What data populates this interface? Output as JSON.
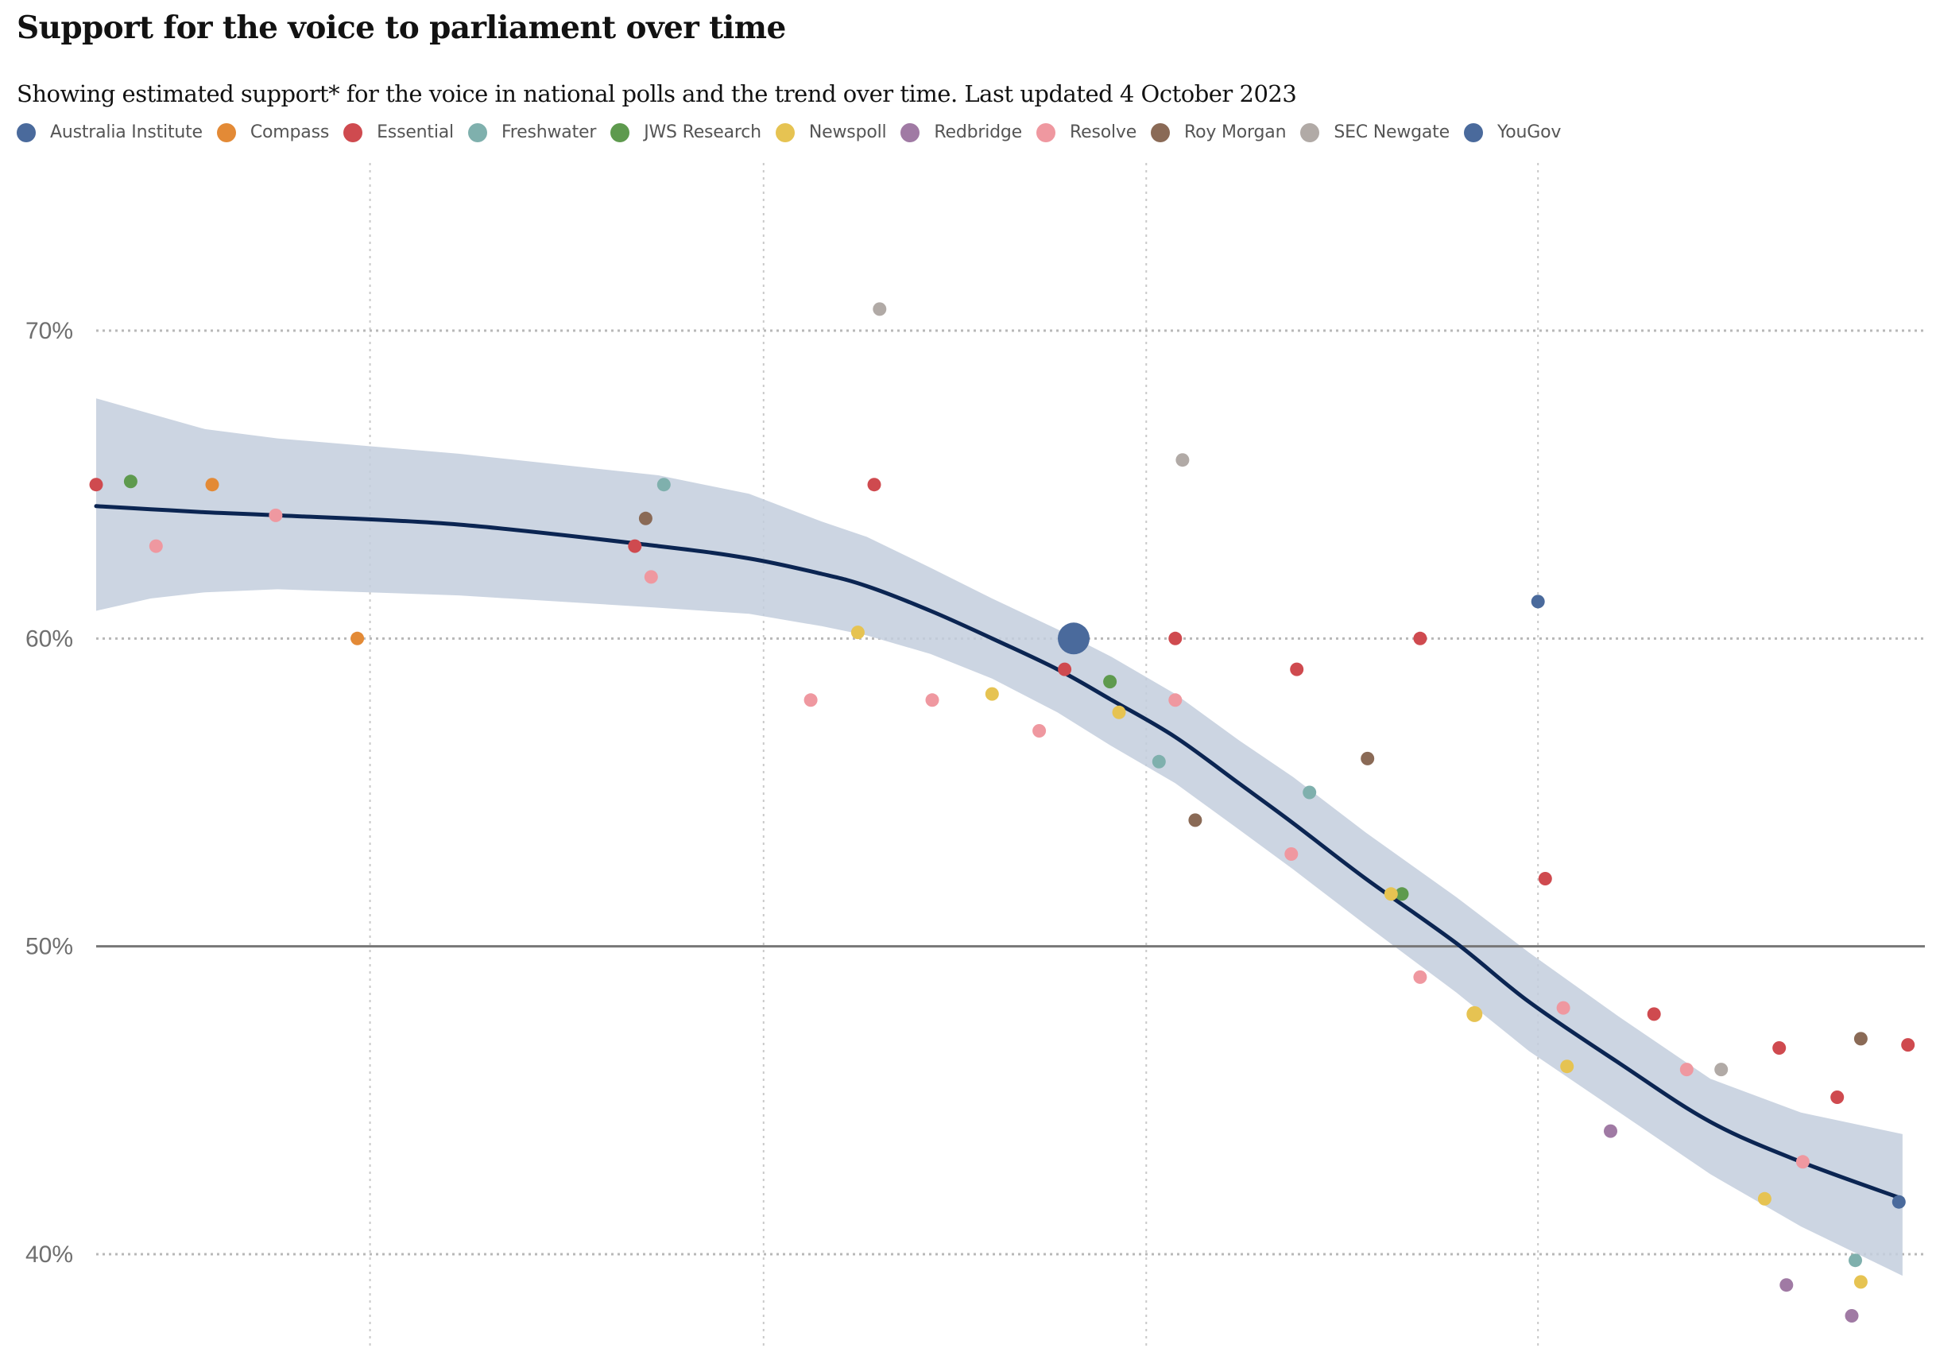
{
  "title": "Support for the voice to parliament over time",
  "subtitle": "Showing estimated support* for the voice in national polls and the trend over time. Last updated 4 October 2023",
  "legend": [
    {
      "name": "Australia Institute",
      "color": "#4a6a9c"
    },
    {
      "name": "Compass",
      "color": "#e38a36"
    },
    {
      "name": "Essential",
      "color": "#cf4a4f"
    },
    {
      "name": "Freshwater",
      "color": "#7fb0ad"
    },
    {
      "name": "JWS Research",
      "color": "#5e9a4e"
    },
    {
      "name": "Newspoll",
      "color": "#e6c352"
    },
    {
      "name": "Redbridge",
      "color": "#a07aa4"
    },
    {
      "name": "Resolve",
      "color": "#ef98a0"
    },
    {
      "name": "Roy Morgan",
      "color": "#8a6a56"
    },
    {
      "name": "SEC Newgate",
      "color": "#b1aaa6"
    },
    {
      "name": "YouGov",
      "color": "#4a6a9c"
    }
  ],
  "chart_data": {
    "type": "scatter",
    "ylim": [
      37,
      74
    ],
    "xlim": [
      0,
      100
    ],
    "yticks": [
      {
        "value": 70,
        "label": "70%"
      },
      {
        "value": 60,
        "label": "60%"
      },
      {
        "value": 50,
        "label": "50%"
      },
      {
        "value": 40,
        "label": "40%"
      }
    ],
    "xgrid": [
      15.1,
      36.8,
      57.9,
      79.5
    ],
    "reference_line": 50,
    "grid": true,
    "trend": {
      "x": [
        0,
        3,
        6,
        10,
        20,
        31,
        36,
        40,
        42.5,
        46,
        49.4,
        53,
        56,
        59.5,
        63,
        66,
        70,
        75,
        79,
        84,
        89,
        94,
        99.6
      ],
      "y": [
        64.3,
        64.2,
        64.1,
        64.0,
        63.7,
        63.0,
        62.6,
        62.1,
        61.7,
        60.9,
        60.0,
        59.0,
        58.0,
        56.8,
        55.3,
        54.0,
        52.2,
        50.1,
        48.2,
        46.2,
        44.3,
        43.0,
        41.8
      ]
    },
    "band": {
      "x": [
        0,
        3,
        6,
        10,
        20,
        31,
        36,
        40,
        42.5,
        46,
        49.4,
        53,
        56,
        59.5,
        63,
        66,
        70,
        75,
        79,
        84,
        89,
        94,
        99.6
      ],
      "upper": [
        67.8,
        67.3,
        66.8,
        66.5,
        66.0,
        65.3,
        64.7,
        63.8,
        63.3,
        62.3,
        61.3,
        60.3,
        59.4,
        58.2,
        56.7,
        55.5,
        53.7,
        51.6,
        49.8,
        47.7,
        45.7,
        44.6,
        43.9
      ],
      "lower": [
        60.9,
        61.3,
        61.5,
        61.6,
        61.4,
        61.0,
        60.8,
        60.4,
        60.1,
        59.5,
        58.7,
        57.6,
        56.5,
        55.3,
        53.8,
        52.5,
        50.7,
        48.5,
        46.6,
        44.6,
        42.6,
        40.9,
        39.3
      ]
    },
    "series": [
      {
        "name": "Australia Institute",
        "points": [
          [
            79.5,
            61.2
          ]
        ]
      },
      {
        "name": "Compass",
        "points": [
          [
            6.4,
            65.0
          ],
          [
            14.4,
            60.0
          ]
        ]
      },
      {
        "name": "Essential",
        "points": [
          [
            0.0,
            65.0
          ],
          [
            29.7,
            63.0
          ],
          [
            42.9,
            65.0
          ],
          [
            53.4,
            59.0
          ],
          [
            59.5,
            60.0
          ],
          [
            66.2,
            59.0
          ],
          [
            73.0,
            60.0
          ],
          [
            79.9,
            52.2
          ],
          [
            85.9,
            47.8
          ],
          [
            92.8,
            46.7
          ],
          [
            96.0,
            45.1
          ],
          [
            99.9,
            46.8
          ]
        ]
      },
      {
        "name": "Freshwater",
        "points": [
          [
            31.3,
            65.0
          ],
          [
            58.6,
            56.0
          ],
          [
            66.9,
            55.0
          ],
          [
            97.0,
            39.8
          ]
        ]
      },
      {
        "name": "JWS Research",
        "points": [
          [
            1.9,
            65.1
          ],
          [
            55.9,
            58.6
          ],
          [
            72.0,
            51.7
          ]
        ]
      },
      {
        "name": "Newspoll",
        "points": [
          [
            42.0,
            60.2
          ],
          [
            49.4,
            58.2
          ],
          [
            56.4,
            57.6
          ],
          [
            71.4,
            51.7
          ],
          [
            76.0,
            47.8
          ],
          [
            81.1,
            46.1
          ],
          [
            92.0,
            41.8
          ],
          [
            97.3,
            39.1
          ]
        ]
      },
      {
        "name": "Redbridge",
        "points": [
          [
            83.5,
            44.0
          ],
          [
            93.2,
            39.0
          ],
          [
            96.8,
            38.0
          ]
        ]
      },
      {
        "name": "Resolve",
        "points": [
          [
            3.3,
            63.0
          ],
          [
            9.9,
            64.0
          ],
          [
            30.6,
            62.0
          ],
          [
            39.4,
            58.0
          ],
          [
            46.1,
            58.0
          ],
          [
            52.0,
            57.0
          ],
          [
            59.5,
            58.0
          ],
          [
            65.9,
            53.0
          ],
          [
            73.0,
            49.0
          ],
          [
            80.9,
            48.0
          ],
          [
            87.7,
            46.0
          ],
          [
            94.1,
            43.0
          ]
        ]
      },
      {
        "name": "Roy Morgan",
        "points": [
          [
            30.3,
            63.9
          ],
          [
            60.6,
            54.1
          ],
          [
            70.1,
            56.1
          ],
          [
            97.3,
            47.0
          ]
        ]
      },
      {
        "name": "SEC Newgate",
        "points": [
          [
            43.2,
            70.7
          ],
          [
            59.9,
            65.8
          ],
          [
            89.6,
            46.0
          ]
        ]
      },
      {
        "name": "YouGov",
        "points": [
          [
            53.9,
            60.0
          ],
          [
            99.4,
            41.7
          ]
        ]
      }
    ]
  }
}
